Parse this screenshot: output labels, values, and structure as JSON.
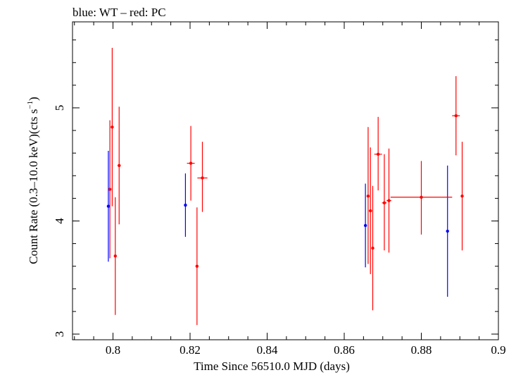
{
  "chart_data": {
    "type": "scatter",
    "title": "blue: WT – red: PC",
    "xlabel": "Time Since 56510.0 MJD (days)",
    "ylabel_main": "Count Rate (0.3–10.0 keV)(cts s",
    "ylabel_sup": "−1",
    "ylabel_close": ")",
    "xlim": [
      0.7895,
      0.9
    ],
    "ylim": [
      2.95,
      5.76
    ],
    "xticks": [
      0.8,
      0.82,
      0.84,
      0.86,
      0.88,
      0.9
    ],
    "xtick_labels": [
      "0.8",
      "0.82",
      "0.84",
      "0.86",
      "0.88",
      "0.9"
    ],
    "yticks": [
      3,
      4,
      5
    ],
    "ytick_labels": [
      "3",
      "4",
      "5"
    ],
    "grid": false,
    "series": [
      {
        "color": "#0000ff",
        "points": [
          {
            "x": 0.7988,
            "y": 4.13,
            "xerr": 0.0001,
            "ylo": 3.64,
            "yhi": 4.62
          },
          {
            "x": 0.8188,
            "y": 4.14,
            "xerr": 0.0001,
            "ylo": 3.86,
            "yhi": 4.42
          },
          {
            "x": 0.8655,
            "y": 3.96,
            "xerr": 0.0001,
            "ylo": 3.59,
            "yhi": 4.33
          },
          {
            "x": 0.8868,
            "y": 3.91,
            "xerr": 0.0001,
            "ylo": 3.33,
            "yhi": 4.49
          }
        ]
      },
      {
        "color": "#ff0000",
        "points": [
          {
            "x": 0.7992,
            "y": 4.28,
            "xerr": 0.0003,
            "ylo": 3.67,
            "yhi": 4.89
          },
          {
            "x": 0.7998,
            "y": 4.83,
            "xerr": 0.0003,
            "ylo": 4.13,
            "yhi": 5.53
          },
          {
            "x": 0.8006,
            "y": 3.69,
            "xerr": 0.0003,
            "ylo": 3.17,
            "yhi": 4.21
          },
          {
            "x": 0.8016,
            "y": 4.49,
            "xerr": 0.0004,
            "ylo": 3.97,
            "yhi": 5.01
          },
          {
            "x": 0.8202,
            "y": 4.51,
            "xerr": 0.001,
            "ylo": 4.18,
            "yhi": 4.84
          },
          {
            "x": 0.8218,
            "y": 3.6,
            "xerr": 0.0002,
            "ylo": 3.08,
            "yhi": 4.12
          },
          {
            "x": 0.8232,
            "y": 4.38,
            "xerr": 0.0013,
            "ylo": 4.08,
            "yhi": 4.7
          },
          {
            "x": 0.8662,
            "y": 4.22,
            "xerr": 0.0003,
            "ylo": 3.62,
            "yhi": 4.83
          },
          {
            "x": 0.8668,
            "y": 4.09,
            "xerr": 0.0003,
            "ylo": 3.53,
            "yhi": 4.65
          },
          {
            "x": 0.8674,
            "y": 3.76,
            "xerr": 0.0003,
            "ylo": 3.21,
            "yhi": 4.31
          },
          {
            "x": 0.8688,
            "y": 4.59,
            "xerr": 0.001,
            "ylo": 4.27,
            "yhi": 4.92
          },
          {
            "x": 0.8704,
            "y": 4.16,
            "xerr": 0.0006,
            "ylo": 3.74,
            "yhi": 4.59
          },
          {
            "x": 0.8716,
            "y": 4.18,
            "xerr": 0.0006,
            "ylo": 3.72,
            "yhi": 4.64
          },
          {
            "x": 0.88,
            "y": 4.21,
            "xerr": 0.008,
            "ylo": 3.88,
            "yhi": 4.53
          },
          {
            "x": 0.889,
            "y": 4.93,
            "xerr": 0.001,
            "ylo": 4.58,
            "yhi": 5.28
          },
          {
            "x": 0.8906,
            "y": 4.22,
            "xerr": 0.0003,
            "ylo": 3.74,
            "yhi": 4.7
          }
        ]
      }
    ]
  }
}
